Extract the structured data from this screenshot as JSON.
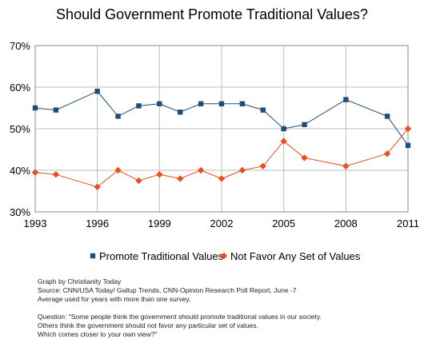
{
  "chart_data": {
    "type": "line",
    "title": "Should Government Promote Traditional Values?",
    "x_ticks": [
      1993,
      1996,
      1999,
      2002,
      2005,
      2008,
      2011
    ],
    "y_ticks": [
      "30%",
      "40%",
      "50%",
      "60%",
      "70%"
    ],
    "ylim": [
      30,
      70
    ],
    "xlim": [
      1993,
      2011
    ],
    "grid": true,
    "legend_position": "bottom",
    "series": [
      {
        "name": "Promote Traditional Values",
        "color": "#1f4e79",
        "marker": "square",
        "x": [
          1993,
          1994,
          1996,
          1997,
          1998,
          1999,
          2000,
          2001,
          2002,
          2003,
          2004,
          2005,
          2006,
          2008,
          2010,
          2011
        ],
        "y": [
          55,
          54.5,
          59,
          53,
          55.5,
          56,
          54,
          56,
          56,
          56,
          54.5,
          50,
          51,
          57,
          53,
          46
        ]
      },
      {
        "name": "Not Favor Any Set of Values",
        "color": "#e8501a",
        "marker": "diamond",
        "x": [
          1993,
          1994,
          1996,
          1997,
          1998,
          1999,
          2000,
          2001,
          2002,
          2003,
          2004,
          2005,
          2006,
          2008,
          2010,
          2011
        ],
        "y": [
          39.5,
          39,
          36,
          40,
          37.5,
          39,
          38,
          40,
          38,
          40,
          41,
          47,
          43,
          41,
          44,
          50
        ]
      }
    ]
  },
  "notes": {
    "line1": "Graph by Christianity Today",
    "line2": "Source: CNN/USA Today/ Gallup Trends, CNN-Opinion Research Poll Report, June -7",
    "line3": "Average used for years with more than one survey.",
    "line4": "Question: \"Some people think the government should promote traditional values in our society.",
    "line5": "Others think the government should not favor any particular set of values.",
    "line6": "Which comes closer to your own view?\""
  }
}
